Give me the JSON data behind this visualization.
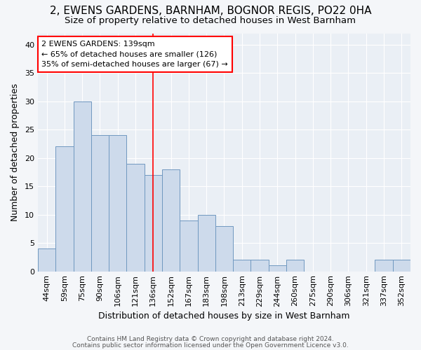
{
  "title1": "2, EWENS GARDENS, BARNHAM, BOGNOR REGIS, PO22 0HA",
  "title2": "Size of property relative to detached houses in West Barnham",
  "xlabel": "Distribution of detached houses by size in West Barnham",
  "ylabel": "Number of detached properties",
  "bar_labels": [
    "44sqm",
    "59sqm",
    "75sqm",
    "90sqm",
    "106sqm",
    "121sqm",
    "136sqm",
    "152sqm",
    "167sqm",
    "183sqm",
    "198sqm",
    "213sqm",
    "229sqm",
    "244sqm",
    "260sqm",
    "275sqm",
    "290sqm",
    "306sqm",
    "321sqm",
    "337sqm",
    "352sqm"
  ],
  "bar_values": [
    4,
    22,
    30,
    24,
    24,
    19,
    17,
    18,
    9,
    10,
    8,
    2,
    2,
    1,
    2,
    0,
    0,
    0,
    0,
    2,
    2
  ],
  "bar_color": "#cddaeb",
  "bar_edgecolor": "#7098c0",
  "red_line_index": 6,
  "annotation_title": "2 EWENS GARDENS: 139sqm",
  "annotation_line1": "← 65% of detached houses are smaller (126)",
  "annotation_line2": "35% of semi-detached houses are larger (67) →",
  "footer1": "Contains HM Land Registry data © Crown copyright and database right 2024.",
  "footer2": "Contains public sector information licensed under the Open Government Licence v3.0.",
  "ylim": [
    0,
    42
  ],
  "yticks": [
    0,
    5,
    10,
    15,
    20,
    25,
    30,
    35,
    40
  ],
  "bg_color": "#f4f6f9",
  "plot_bg_color": "#eaeff5",
  "grid_color": "#ffffff",
  "title1_fontsize": 11,
  "title2_fontsize": 9.5
}
